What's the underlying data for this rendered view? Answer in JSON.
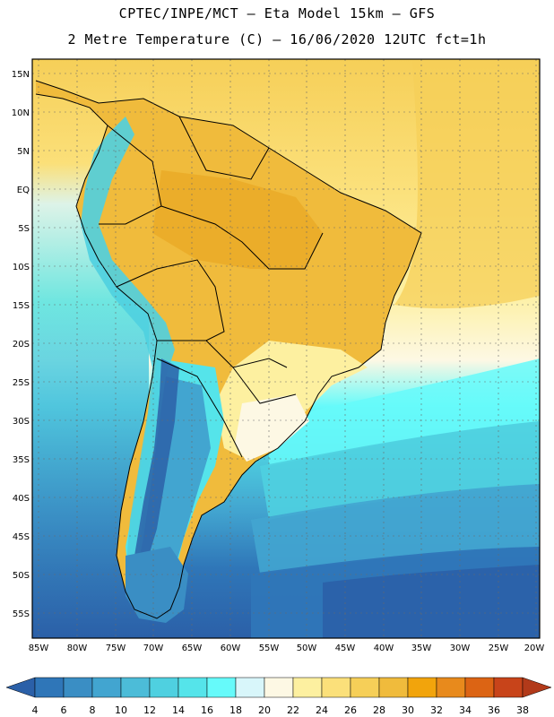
{
  "title_line1": "CPTEC/INPE/MCT –  Eta Model 15km – GFS",
  "title_line2": "2 Metre Temperature (C) – 16/06/2020 12UTC fct=1h",
  "lat_labels": [
    "15N",
    "10N",
    "5N",
    "EQ",
    "5S",
    "10S",
    "15S",
    "20S",
    "25S",
    "30S",
    "35S",
    "40S",
    "45S",
    "50S",
    "55S"
  ],
  "lon_labels": [
    "85W",
    "80W",
    "75W",
    "70W",
    "65W",
    "60W",
    "55W",
    "50W",
    "45W",
    "40W",
    "35W",
    "30W",
    "25W",
    "20W"
  ],
  "colorbar": {
    "values": [
      "4",
      "6",
      "8",
      "10",
      "12",
      "14",
      "16",
      "18",
      "20",
      "22",
      "24",
      "26",
      "28",
      "30",
      "32",
      "34",
      "36",
      "38"
    ],
    "colors": [
      "#2b60a8",
      "#2f76b8",
      "#3a8ec4",
      "#42a5d0",
      "#4cbcd8",
      "#4fd0e0",
      "#55e4ea",
      "#66fafa",
      "#d8f6fa",
      "#fdf8e4",
      "#fdf0a0",
      "#fbe07a",
      "#f6cf58",
      "#f0bb3c",
      "#f2a40c",
      "#e88a1c",
      "#dc6414",
      "#c8441a",
      "#b23a1a"
    ]
  },
  "map": {
    "region": "South America",
    "variable": "2 Metre Temperature",
    "units": "C"
  }
}
